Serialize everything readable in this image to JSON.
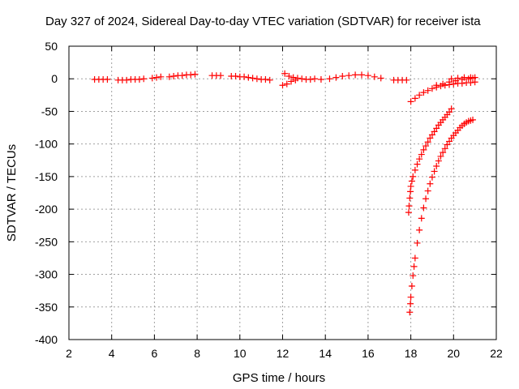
{
  "chart_data": {
    "type": "scatter",
    "title": "Day 327 of 2024, Sidereal Day-to-day VTEC variation (SDTVAR) for receiver ista",
    "xlabel": "GPS time / hours",
    "ylabel": "SDTVAR / TECUs",
    "xlim": [
      2,
      22
    ],
    "ylim": [
      -400,
      50
    ],
    "xticks": [
      2,
      4,
      6,
      8,
      10,
      12,
      14,
      16,
      18,
      20,
      22
    ],
    "yticks": [
      50,
      0,
      -50,
      -100,
      -150,
      -200,
      -250,
      -300,
      -350,
      -400
    ],
    "xtick_labels": [
      "2",
      "4",
      "6",
      "8",
      "10",
      "12",
      "14",
      "16",
      "18",
      "20",
      "22"
    ],
    "ytick_labels": [
      "50",
      "0",
      "-50",
      "-100",
      "-150",
      "-200",
      "-250",
      "-300",
      "-350",
      "-400"
    ],
    "grid": true,
    "marker": "plus",
    "color": "#ff0000",
    "series": [
      {
        "name": "",
        "x": [
          3.2,
          3.4,
          3.6,
          3.8,
          4.3,
          4.5,
          4.7,
          4.9,
          5.1,
          5.3,
          5.5,
          5.9,
          6.1,
          6.3,
          6.7,
          6.9,
          7.1,
          7.3,
          7.5,
          7.7,
          7.9,
          8.7,
          8.9,
          9.1,
          9.6,
          9.8,
          10.0,
          10.2,
          10.4,
          10.6,
          10.8,
          11.0,
          11.2,
          11.4,
          12.0,
          12.1,
          12.2,
          12.3,
          12.4,
          12.5,
          12.6,
          12.7,
          12.9,
          13.1,
          13.3,
          13.5,
          13.8,
          14.2,
          14.5,
          14.8,
          15.1,
          15.4,
          15.7,
          16.0,
          16.3,
          16.6,
          17.2,
          17.4,
          17.6,
          17.8,
          18.0,
          18.2,
          18.4,
          18.6,
          18.8,
          19.0,
          19.2,
          19.4,
          19.6,
          19.8,
          20.0,
          20.2,
          20.4,
          20.6,
          20.8,
          21.0,
          19.2,
          19.5,
          19.8,
          20.1,
          20.4,
          20.7,
          20.9,
          19.9,
          20.2,
          20.5,
          20.8,
          21.0
        ],
        "y": [
          -1,
          -1,
          -1,
          -1,
          -2,
          -2,
          -2,
          -1,
          -1,
          -1,
          0,
          1,
          2,
          3,
          3,
          4,
          5,
          5,
          6,
          6,
          7,
          5,
          5,
          5,
          4,
          4,
          3,
          3,
          2,
          1,
          0,
          -1,
          -1,
          -2,
          -10,
          8,
          -8,
          4,
          -4,
          2,
          -2,
          1,
          0,
          -1,
          -1,
          0,
          -1,
          0,
          2,
          4,
          5,
          6,
          6,
          5,
          3,
          1,
          -2,
          -2,
          -2,
          -2,
          -35,
          -30,
          -25,
          -21,
          -18,
          -15,
          -13,
          -11,
          -10,
          -9,
          -8,
          -7,
          -7,
          -6,
          -6,
          -5,
          -10,
          -8,
          -5,
          -3,
          -1,
          0,
          1,
          0,
          1,
          2,
          2,
          2
        ]
      },
      {
        "name": "",
        "x": [
          17.9,
          17.92,
          17.95,
          17.98,
          18.0,
          18.05,
          18.1,
          18.2,
          18.3,
          18.4,
          18.5,
          18.6,
          18.7,
          18.8,
          18.9,
          19.0,
          19.1,
          19.2,
          19.3,
          19.4,
          19.5,
          19.6,
          19.7,
          19.8,
          19.9
        ],
        "y": [
          -205,
          -195,
          -183,
          -173,
          -165,
          -157,
          -150,
          -140,
          -131,
          -123,
          -116,
          -109,
          -103,
          -97,
          -91,
          -86,
          -81,
          -76,
          -71,
          -67,
          -63,
          -59,
          -55,
          -51,
          -46
        ]
      },
      {
        "name": "",
        "x": [
          17.95,
          17.98,
          18.0,
          18.05,
          18.1,
          18.15,
          18.2,
          18.3,
          18.4,
          18.5,
          18.6,
          18.7,
          18.8,
          18.9,
          19.0,
          19.1,
          19.2,
          19.3,
          19.4,
          19.5,
          19.6,
          19.7,
          19.8,
          19.9,
          20.0,
          20.1,
          20.2,
          20.3,
          20.4,
          20.5,
          20.6,
          20.7,
          20.8,
          20.9
        ],
        "y": [
          -358,
          -345,
          -335,
          -318,
          -302,
          -288,
          -275,
          -252,
          -232,
          -214,
          -198,
          -184,
          -172,
          -161,
          -151,
          -142,
          -134,
          -126,
          -119,
          -113,
          -107,
          -101,
          -96,
          -91,
          -87,
          -83,
          -79,
          -75,
          -72,
          -69,
          -67,
          -65,
          -64,
          -63
        ]
      }
    ]
  }
}
